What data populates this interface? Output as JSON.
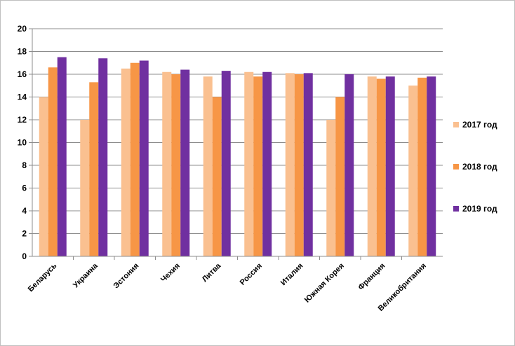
{
  "chart_data": {
    "type": "bar",
    "title": "",
    "xlabel": "",
    "ylabel": "",
    "ylim": [
      0,
      20
    ],
    "yticks": [
      0,
      2,
      4,
      6,
      8,
      10,
      12,
      14,
      16,
      18,
      20
    ],
    "grid": true,
    "legend_position": "right",
    "categories": [
      "Беларусь",
      "Украина",
      "Эстония",
      "Чехия",
      "Литва",
      "Россия",
      "Италия",
      "Южная Корея",
      "Франция",
      "Великобритания"
    ],
    "series": [
      {
        "name": "2017 год",
        "color": "#fac090",
        "values": [
          14,
          12,
          16.5,
          16.2,
          15.8,
          16.2,
          16.1,
          12,
          15.8,
          15
        ]
      },
      {
        "name": "2018 год",
        "color": "#f79646",
        "values": [
          16.6,
          15.3,
          17,
          16,
          14,
          15.8,
          16,
          14,
          15.6,
          15.7
        ]
      },
      {
        "name": "2019 год",
        "color": "#7030a0",
        "values": [
          17.5,
          17.4,
          17.2,
          16.4,
          16.3,
          16.2,
          16.1,
          16,
          15.8,
          15.8
        ]
      }
    ]
  }
}
